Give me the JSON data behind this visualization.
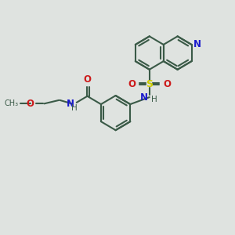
{
  "bg_color": "#dfe3e0",
  "bond_color": "#3a5a47",
  "N_color": "#1a1acc",
  "O_color": "#cc1a1a",
  "S_color": "#cccc00",
  "line_width": 1.5,
  "figsize": [
    3.0,
    3.0
  ],
  "dpi": 100,
  "xlim": [
    0,
    10
  ],
  "ylim": [
    0,
    10
  ]
}
